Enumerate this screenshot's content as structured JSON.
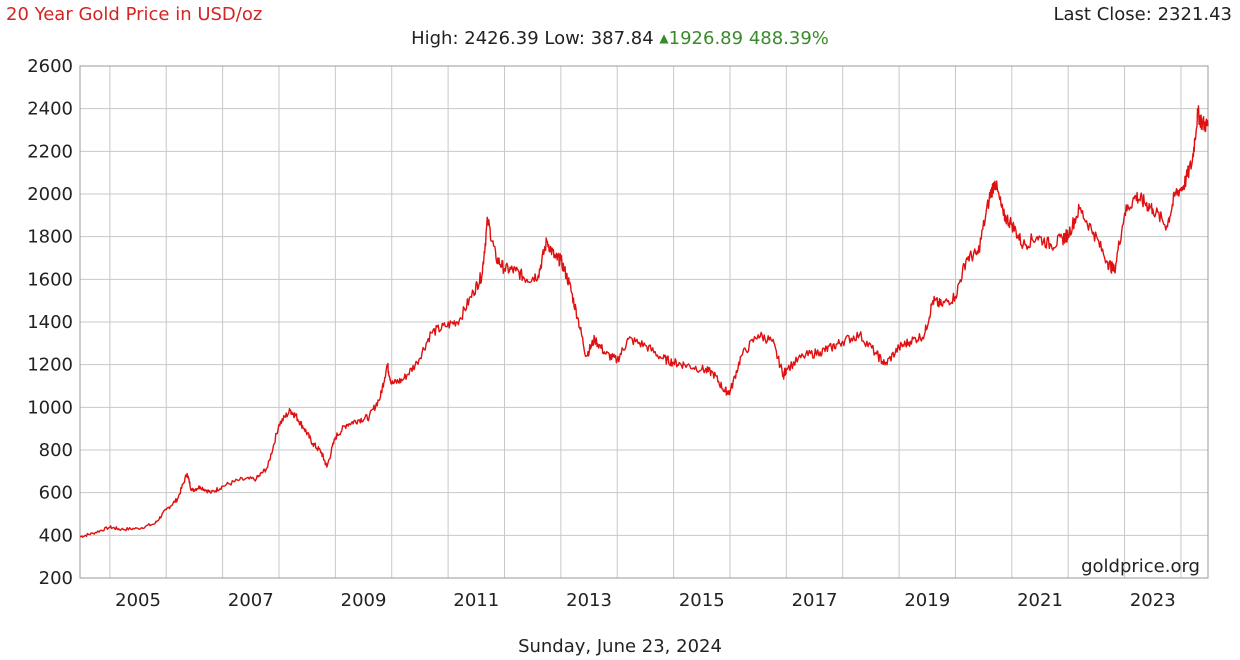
{
  "header": {
    "title": "20 Year Gold Price in USD/oz",
    "last_close_label": "Last Close:",
    "last_close_value": "2321.43",
    "high_label": "High:",
    "high_value": "2426.39",
    "low_label": "Low:",
    "low_value": "387.84",
    "change_value": "1926.89",
    "change_pct": "488.39%"
  },
  "footer": {
    "watermark": "goldprice.org",
    "date": "Sunday, June 23, 2024"
  },
  "colors": {
    "line": "#e01010",
    "title": "#d42424",
    "change_up": "#3a8a2c",
    "grid": "#c8c8c8"
  },
  "icons": {
    "change_direction": "up-triangle-icon"
  },
  "chart_data": {
    "type": "line",
    "title": "20 Year Gold Price in USD/oz",
    "xlabel": "",
    "ylabel": "",
    "ylim": [
      200,
      2600
    ],
    "xlim": [
      2004.47,
      2024.48
    ],
    "grid": true,
    "yticks": [
      200,
      400,
      600,
      800,
      1000,
      1200,
      1400,
      1600,
      1800,
      2000,
      2200,
      2400,
      2600
    ],
    "xtick_labels": [
      "2005",
      "2007",
      "2009",
      "2011",
      "2013",
      "2015",
      "2017",
      "2019",
      "2021",
      "2023"
    ],
    "series": [
      {
        "x": [
          2004.47,
          2004.7,
          2005.0,
          2005.2,
          2005.5,
          2005.8,
          2006.0,
          2006.2,
          2006.37,
          2006.45,
          2006.6,
          2006.8,
          2007.0,
          2007.3,
          2007.6,
          2007.8,
          2008.0,
          2008.2,
          2008.3,
          2008.45,
          2008.6,
          2008.75,
          2008.85,
          2009.0,
          2009.2,
          2009.4,
          2009.6,
          2009.8,
          2009.92,
          2010.0,
          2010.2,
          2010.45,
          2010.7,
          2010.95,
          2011.2,
          2011.45,
          2011.6,
          2011.7,
          2011.85,
          2012.0,
          2012.2,
          2012.4,
          2012.6,
          2012.75,
          2012.9,
          2013.0,
          2013.15,
          2013.3,
          2013.45,
          2013.6,
          2013.8,
          2014.0,
          2014.2,
          2014.5,
          2014.8,
          2015.0,
          2015.2,
          2015.5,
          2015.7,
          2015.9,
          2016.0,
          2016.2,
          2016.5,
          2016.75,
          2016.95,
          2017.0,
          2017.3,
          2017.6,
          2017.8,
          2018.0,
          2018.3,
          2018.6,
          2018.75,
          2019.0,
          2019.2,
          2019.45,
          2019.6,
          2019.75,
          2020.0,
          2020.2,
          2020.4,
          2020.6,
          2020.7,
          2020.85,
          2021.0,
          2021.2,
          2021.45,
          2021.7,
          2021.9,
          2022.0,
          2022.2,
          2022.45,
          2022.7,
          2022.82,
          2023.0,
          2023.2,
          2023.35,
          2023.5,
          2023.75,
          2023.9,
          2024.05,
          2024.2,
          2024.3,
          2024.38,
          2024.48
        ],
        "y": [
          393,
          410,
          438,
          428,
          432,
          455,
          520,
          570,
          690,
          610,
          628,
          600,
          630,
          660,
          665,
          720,
          920,
          985,
          960,
          900,
          830,
          790,
          720,
          860,
          920,
          940,
          955,
          1050,
          1200,
          1110,
          1130,
          1210,
          1350,
          1380,
          1410,
          1540,
          1620,
          1880,
          1700,
          1650,
          1640,
          1600,
          1620,
          1780,
          1700,
          1690,
          1580,
          1420,
          1240,
          1320,
          1250,
          1220,
          1320,
          1290,
          1230,
          1210,
          1200,
          1180,
          1160,
          1080,
          1070,
          1240,
          1340,
          1310,
          1150,
          1180,
          1240,
          1260,
          1280,
          1310,
          1340,
          1250,
          1200,
          1280,
          1310,
          1340,
          1500,
          1480,
          1520,
          1700,
          1720,
          1980,
          2060,
          1900,
          1860,
          1760,
          1800,
          1760,
          1790,
          1810,
          1930,
          1820,
          1680,
          1640,
          1910,
          1990,
          1960,
          1930,
          1850,
          2000,
          2040,
          2150,
          2380,
          2330,
          2320
        ]
      }
    ]
  }
}
